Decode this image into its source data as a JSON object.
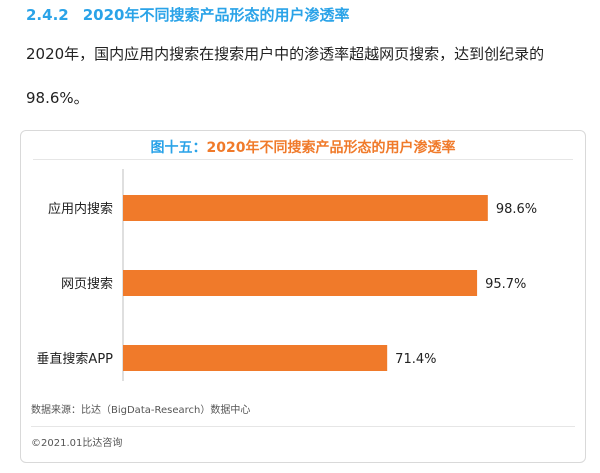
{
  "section": {
    "number": "2.4.2",
    "title": "2020年不同搜索产品形态的用户渗透率"
  },
  "paragraph": {
    "line1": "2020年，国内应用内搜索在搜索用户中的渗透率超越网页搜索，达到创纪录的",
    "line2": "98.6%。"
  },
  "figure": {
    "title_prefix": "图十五：",
    "title": "2020年不同搜索产品形态的用户渗透率",
    "source": "数据来源：比达（BigData-Research）数据中心",
    "copyright": "©2021.01比达咨询"
  },
  "colors": {
    "bar": "#f07a2a",
    "heading": "#2aa3e8",
    "axis": "#bfbfbf"
  },
  "chart_data": {
    "type": "bar",
    "orientation": "horizontal",
    "categories": [
      "应用内搜索",
      "网页搜索",
      "垂直搜索APP"
    ],
    "values": [
      98.6,
      95.7,
      71.4
    ],
    "value_labels": [
      "98.6%",
      "95.7%",
      "71.4%"
    ],
    "xlim": [
      0,
      100
    ],
    "grid": false
  }
}
